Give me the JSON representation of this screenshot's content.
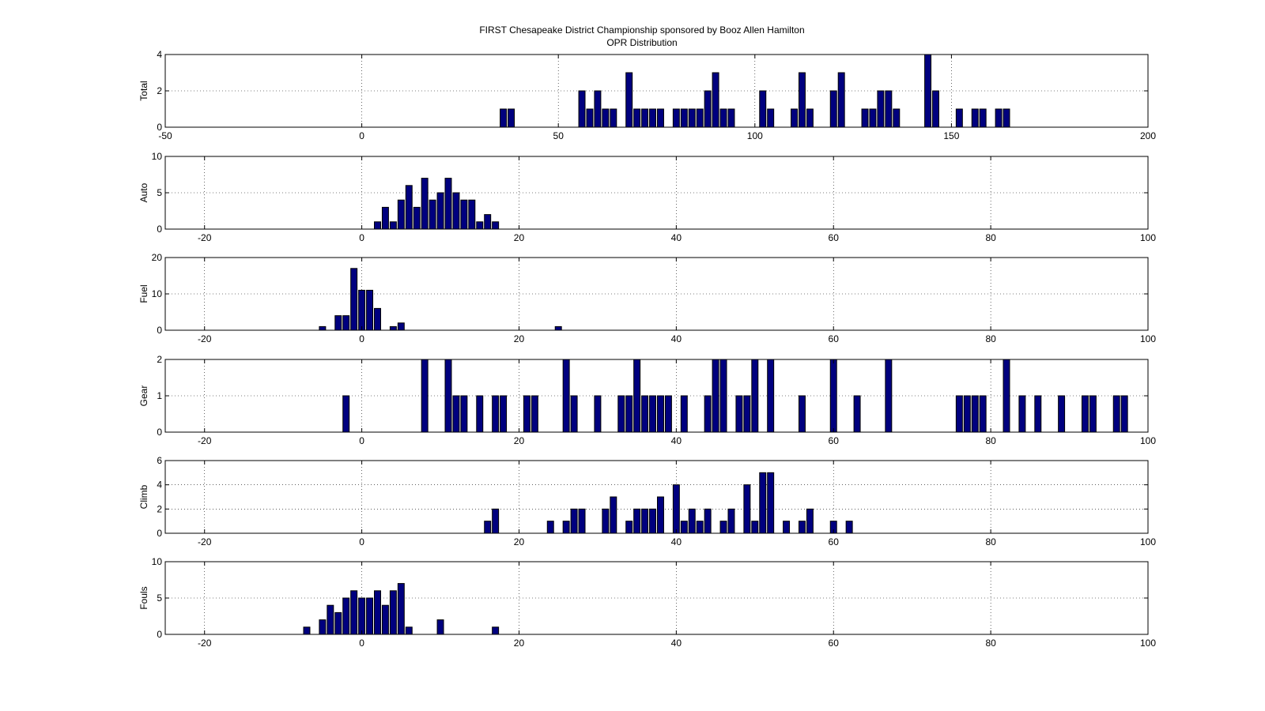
{
  "figure": {
    "title": "FIRST Chesapeake District Championship sponsored by Booz Allen Hamilton",
    "subtitle": "OPR Distribution",
    "bar_color": "#00007f",
    "background": "#ffffff"
  },
  "chart_data": [
    {
      "type": "bar",
      "ylabel": "Total",
      "xlim": [
        -50,
        200
      ],
      "ylim": [
        0,
        4
      ],
      "xticks": [
        -50,
        0,
        50,
        100,
        150,
        200
      ],
      "yticks": [
        0,
        2,
        4
      ],
      "grid": true,
      "bin_width": 2,
      "x": [
        36,
        38,
        56,
        58,
        60,
        62,
        64,
        68,
        70,
        72,
        74,
        76,
        80,
        82,
        84,
        86,
        88,
        90,
        92,
        94,
        102,
        104,
        110,
        112,
        114,
        120,
        122,
        128,
        130,
        132,
        134,
        136,
        144,
        146,
        152,
        156,
        158,
        162,
        164
      ],
      "values": [
        1,
        1,
        2,
        1,
        2,
        1,
        1,
        3,
        1,
        1,
        1,
        1,
        1,
        1,
        1,
        1,
        2,
        3,
        1,
        1,
        2,
        1,
        1,
        3,
        1,
        2,
        3,
        1,
        1,
        2,
        2,
        1,
        4,
        2,
        1,
        1,
        1,
        1,
        1
      ]
    },
    {
      "type": "bar",
      "ylabel": "Auto",
      "xlim": [
        -25,
        100
      ],
      "ylim": [
        0,
        10
      ],
      "xticks": [
        -20,
        0,
        20,
        40,
        60,
        80,
        100
      ],
      "yticks": [
        0,
        5,
        10
      ],
      "grid": true,
      "bin_width": 1,
      "x": [
        2,
        3,
        4,
        5,
        6,
        7,
        8,
        9,
        10,
        11,
        12,
        13,
        14,
        15,
        16,
        17
      ],
      "values": [
        1,
        3,
        1,
        4,
        6,
        3,
        7,
        4,
        5,
        7,
        5,
        4,
        4,
        1,
        2,
        1
      ]
    },
    {
      "type": "bar",
      "ylabel": "Fuel",
      "xlim": [
        -25,
        100
      ],
      "ylim": [
        0,
        20
      ],
      "xticks": [
        -20,
        0,
        20,
        40,
        60,
        80,
        100
      ],
      "yticks": [
        0,
        10,
        20
      ],
      "grid": true,
      "bin_width": 1,
      "x": [
        -5,
        -3,
        -2,
        -1,
        0,
        1,
        2,
        4,
        5,
        25
      ],
      "values": [
        1,
        4,
        4,
        17,
        11,
        11,
        6,
        1,
        2,
        1
      ]
    },
    {
      "type": "bar",
      "ylabel": "Gear",
      "xlim": [
        -25,
        100
      ],
      "ylim": [
        0,
        2
      ],
      "xticks": [
        -20,
        0,
        20,
        40,
        60,
        80,
        100
      ],
      "yticks": [
        0,
        1,
        2
      ],
      "grid": true,
      "bin_width": 1,
      "x": [
        -2,
        8,
        11,
        12,
        13,
        15,
        17,
        18,
        21,
        22,
        26,
        27,
        30,
        33,
        34,
        35,
        36,
        37,
        38,
        39,
        41,
        44,
        45,
        46,
        48,
        49,
        50,
        52,
        56,
        60,
        63,
        67,
        76,
        77,
        78,
        79,
        82,
        84,
        86,
        89,
        92,
        93,
        96,
        97
      ],
      "values": [
        1,
        2,
        2,
        1,
        1,
        1,
        1,
        1,
        1,
        1,
        2,
        1,
        1,
        1,
        1,
        2,
        1,
        1,
        1,
        1,
        1,
        1,
        2,
        2,
        1,
        1,
        2,
        2,
        1,
        2,
        1,
        2,
        1,
        1,
        1,
        1,
        2,
        1,
        1,
        1,
        1,
        1,
        1,
        1
      ]
    },
    {
      "type": "bar",
      "ylabel": "Climb",
      "xlim": [
        -25,
        100
      ],
      "ylim": [
        0,
        6
      ],
      "xticks": [
        -20,
        0,
        20,
        40,
        60,
        80,
        100
      ],
      "yticks": [
        0,
        2,
        4,
        6
      ],
      "grid": true,
      "bin_width": 1,
      "x": [
        16,
        17,
        24,
        26,
        27,
        28,
        31,
        32,
        34,
        35,
        36,
        37,
        38,
        40,
        41,
        42,
        43,
        44,
        46,
        47,
        49,
        50,
        51,
        52,
        54,
        56,
        57,
        60,
        62
      ],
      "values": [
        1,
        2,
        1,
        1,
        2,
        2,
        2,
        3,
        1,
        2,
        2,
        2,
        3,
        4,
        1,
        2,
        1,
        2,
        1,
        2,
        4,
        1,
        5,
        5,
        1,
        1,
        2,
        1,
        1
      ]
    },
    {
      "type": "bar",
      "ylabel": "Fouls",
      "xlim": [
        -25,
        100
      ],
      "ylim": [
        0,
        10
      ],
      "xticks": [
        -20,
        0,
        20,
        40,
        60,
        80,
        100
      ],
      "yticks": [
        0,
        5,
        10
      ],
      "grid": true,
      "bin_width": 1,
      "x": [
        -7,
        -5,
        -4,
        -3,
        -2,
        -1,
        0,
        1,
        2,
        3,
        4,
        5,
        6,
        10,
        17
      ],
      "values": [
        1,
        2,
        4,
        3,
        5,
        6,
        5,
        5,
        6,
        4,
        6,
        7,
        1,
        2,
        1
      ]
    }
  ]
}
